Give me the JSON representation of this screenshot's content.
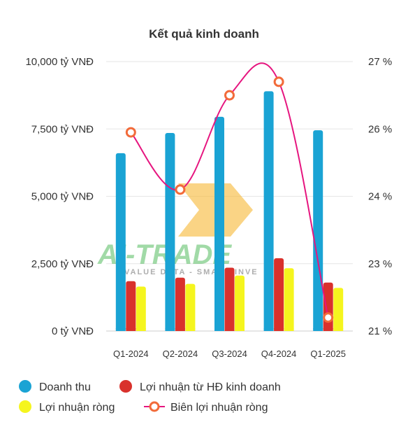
{
  "chart_data": {
    "type": "bar",
    "title": "Kết quả kinh doanh",
    "categories": [
      "Q1-2024",
      "Q2-2024",
      "Q3-2024",
      "Q4-2024",
      "Q1-2025"
    ],
    "y_left": {
      "ticks": [
        0,
        2500,
        5000,
        7500,
        10000
      ],
      "tick_labels": [
        "0 tỷ VNĐ",
        "2,500 tỷ VNĐ",
        "5,000 tỷ VNĐ",
        "7,500 tỷ VNĐ",
        "10,000 tỷ VNĐ"
      ],
      "range": [
        0,
        10000
      ]
    },
    "y_right": {
      "tick_labels": [
        "21 %",
        "23 %",
        "24 %",
        "26 %",
        "27 %"
      ]
    },
    "series": [
      {
        "name": "Doanh thu",
        "type": "bar",
        "axis": "left",
        "color": "#1aa3d4",
        "values": [
          6600,
          7350,
          7950,
          8900,
          7450
        ]
      },
      {
        "name": "Lợi nhuận từ HĐ kinh doanh",
        "type": "bar",
        "axis": "left",
        "color": "#d9312c",
        "values": [
          1850,
          1980,
          2350,
          2700,
          1800
        ]
      },
      {
        "name": "Lợi nhuận ròng",
        "type": "bar",
        "axis": "left",
        "color": "#f5f51e",
        "values": [
          1650,
          1750,
          2060,
          2330,
          1600
        ]
      },
      {
        "name": "Biên lợi nhuận ròng",
        "type": "line",
        "axis": "right",
        "color": "#e6157f",
        "marker_color": "#f26b3a",
        "values": [
          25.9,
          24.2,
          26.5,
          26.7,
          21.4
        ]
      }
    ],
    "grid": true,
    "legend_position": "bottom-left"
  },
  "watermark": {
    "text": "AI-TRADE",
    "tagline": "VALUE DATA - SMART INVE"
  }
}
